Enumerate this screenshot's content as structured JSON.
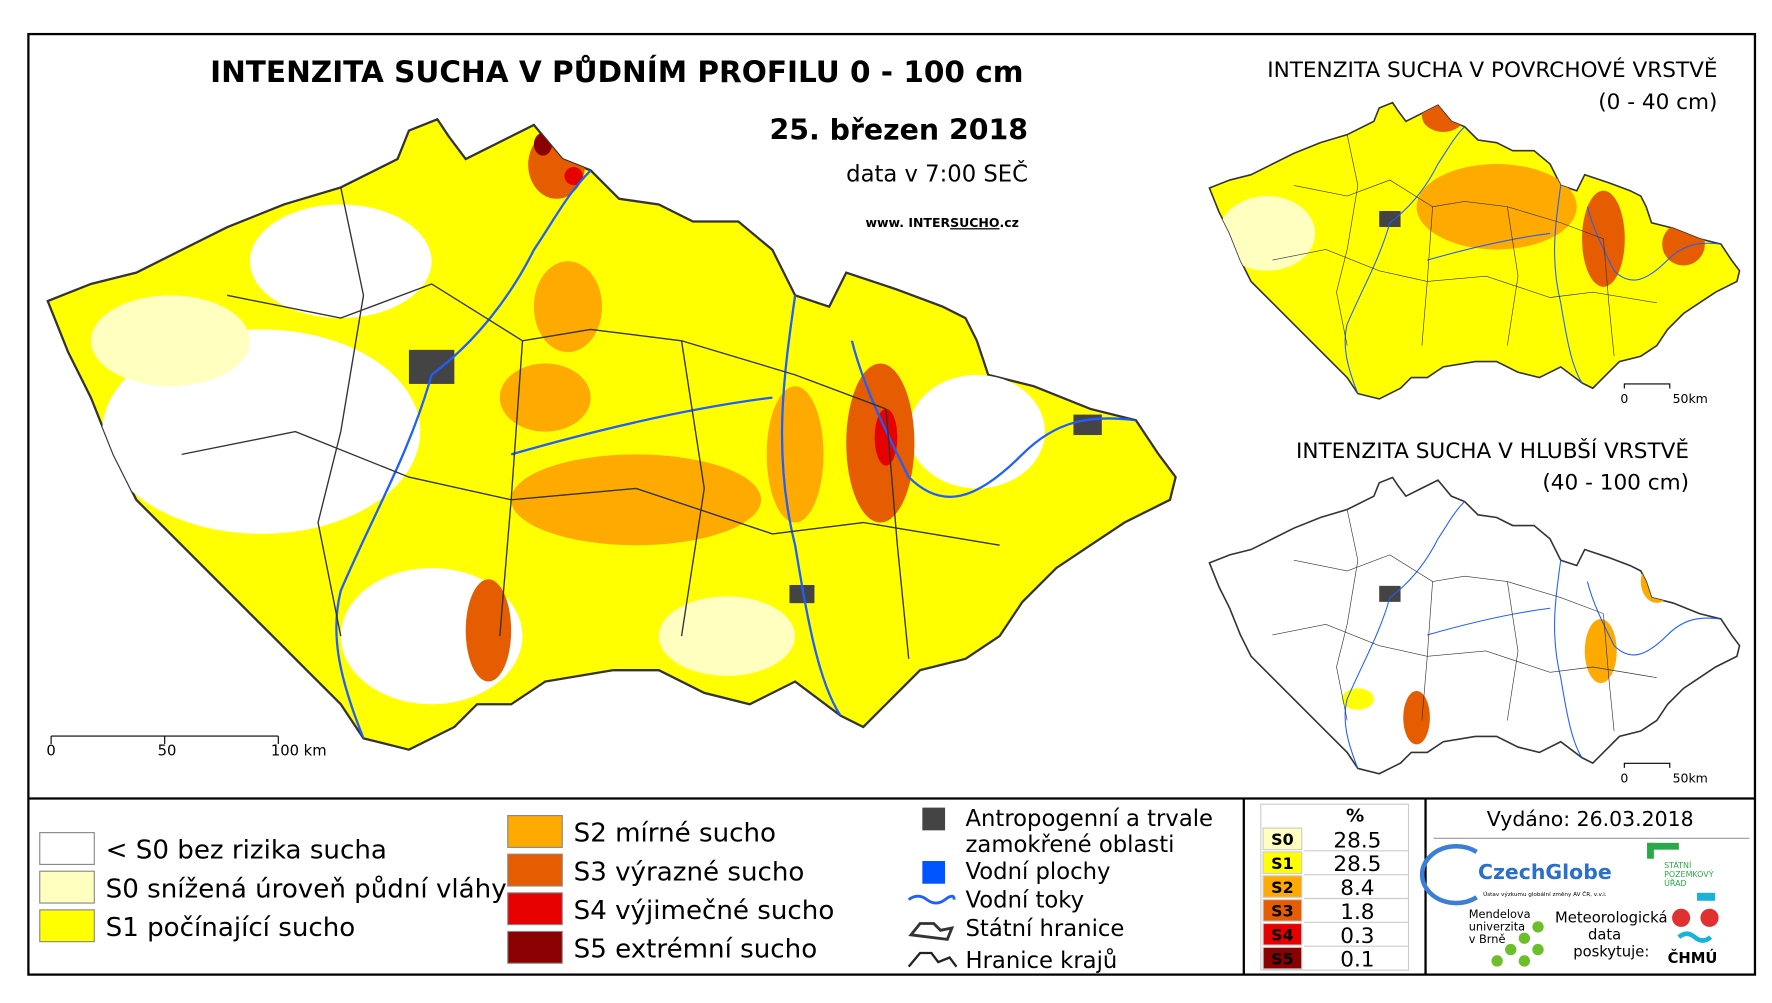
{
  "main_map": {
    "title": "INTENZITA SUCHA V PŮDNÍM PROFILU 0 - 100 cm",
    "date": "25. březen 2018",
    "time": "data v 7:00 SEČ",
    "website": [
      "www. INTER",
      "SUCHO",
      ".cz"
    ],
    "scale": [
      "0",
      "50",
      "100 km"
    ]
  },
  "surface_map": {
    "title": "INTENZITA SUCHA V POVRCHOVÉ VRSTVĚ",
    "depth": "(0 - 40 cm)",
    "scale": [
      "0",
      "50km"
    ]
  },
  "deep_map": {
    "title": "INTENZITA SUCHA V HLUBŠÍ VRSTVĚ",
    "depth": "(40 - 100 cm)",
    "scale": [
      "0",
      "50km"
    ]
  },
  "legend": {
    "drought": [
      {
        "label": "< S0 bez rizika sucha",
        "color": "#ffffff"
      },
      {
        "label": "S0 snížená úroveň půdní vláhy",
        "color": "#ffffc0"
      },
      {
        "label": "S1 počínající sucho",
        "color": "#ffff00"
      },
      {
        "label": "S2 mírné sucho",
        "color": "#ffaa00"
      },
      {
        "label": "S3 výrazné sucho",
        "color": "#e65c00"
      },
      {
        "label": "S4 výjimečné sucho",
        "color": "#e60000"
      },
      {
        "label": "S5 extrémní sucho",
        "color": "#8b0000"
      }
    ],
    "other": [
      {
        "label": [
          "Antropogenní a trvale",
          "zamokřené oblasti"
        ],
        "color": "#444444"
      },
      {
        "label": [
          "Vodní plochy"
        ],
        "color": "#0055ff"
      },
      {
        "label": [
          "Vodní toky"
        ],
        "color": "#1f5fff"
      },
      {
        "label": [
          "Státní hranice"
        ],
        "color": "#333333"
      },
      {
        "label": [
          "Hranice krajů"
        ],
        "color": "#222222"
      }
    ]
  },
  "stats": {
    "header": "%",
    "rows": [
      {
        "label": "S0",
        "value": "28.5",
        "color": "#ffffc0"
      },
      {
        "label": "S1",
        "value": "28.5",
        "color": "#ffff00"
      },
      {
        "label": "S2",
        "value": "8.4",
        "color": "#ffaa00"
      },
      {
        "label": "S3",
        "value": "1.8",
        "color": "#e65c00"
      },
      {
        "label": "S4",
        "value": "0.3",
        "color": "#e60000"
      },
      {
        "label": "S5",
        "value": "0.1",
        "color": "#8b0000"
      }
    ]
  },
  "footer": {
    "issued": "Vydáno: 26.03.2018",
    "czechglobe": "CzechGlobe",
    "czechglobe_sub": "Ústav výzkumu globální změny AV ČR, v.v.i.",
    "spu": [
      "STÁTNÍ",
      "POZEMKOVÝ",
      "ÚŘAD"
    ],
    "mendel": [
      "Mendelova",
      "univerzita",
      "v Brně"
    ],
    "chmu_note": [
      "Meteorologická",
      "data",
      "poskytuje:"
    ],
    "chmu": "ČHMÚ"
  }
}
